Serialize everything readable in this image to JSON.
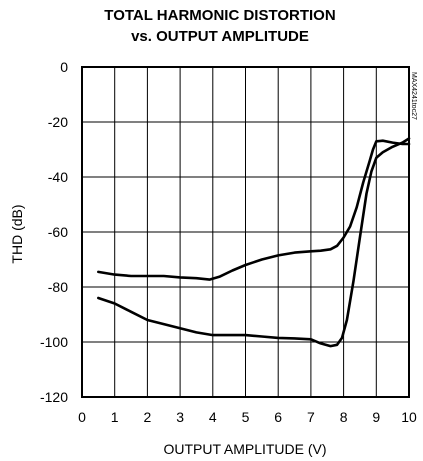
{
  "chart_data": {
    "type": "line",
    "title_line1": "TOTAL HARMONIC DISTORTION",
    "title_line2": "vs. OUTPUT AMPLITUDE",
    "xlabel": "OUTPUT AMPLITUDE (V)",
    "ylabel": "THD (dB)",
    "xlim": [
      0,
      10
    ],
    "ylim": [
      -120,
      0
    ],
    "xticks": [
      0,
      1,
      2,
      3,
      4,
      5,
      6,
      7,
      8,
      9,
      10
    ],
    "yticks": [
      0,
      -20,
      -40,
      -60,
      -80,
      -100,
      -120
    ],
    "grid": true,
    "ref_code": "MAX4241toc27",
    "series": [
      {
        "x": [
          0.5,
          1,
          1.5,
          2,
          2.5,
          3,
          3.5,
          3.9,
          4.2,
          4.6,
          5,
          5.5,
          6,
          6.5,
          7,
          7.3,
          7.6,
          7.8,
          8.0,
          8.2,
          8.4,
          8.6,
          8.8,
          8.9,
          9.0,
          9.2,
          9.5,
          9.8,
          10
        ],
        "values": [
          -74.5,
          -75.5,
          -76,
          -76,
          -76,
          -76.5,
          -76.8,
          -77.3,
          -76.3,
          -74,
          -72,
          -70,
          -68.5,
          -67.5,
          -67,
          -66.8,
          -66.3,
          -65,
          -62,
          -58,
          -51,
          -42,
          -34,
          -30,
          -27,
          -26.8,
          -27.5,
          -28,
          -28
        ]
      },
      {
        "x": [
          0.5,
          1,
          1.5,
          2,
          2.5,
          3,
          3.5,
          4,
          4.5,
          5,
          5.5,
          6,
          6.5,
          7,
          7.3,
          7.6,
          7.8,
          7.95,
          8.1,
          8.3,
          8.5,
          8.7,
          8.85,
          9.0,
          9.2,
          9.5,
          9.8,
          10
        ],
        "values": [
          -84,
          -86,
          -89,
          -92,
          -93.5,
          -95,
          -96.5,
          -97.5,
          -97.5,
          -97.5,
          -98,
          -98.5,
          -98.7,
          -99,
          -100.5,
          -101.5,
          -101,
          -98.5,
          -92,
          -78,
          -62,
          -46,
          -38,
          -33,
          -31,
          -29,
          -27.5,
          -26
        ]
      }
    ]
  }
}
